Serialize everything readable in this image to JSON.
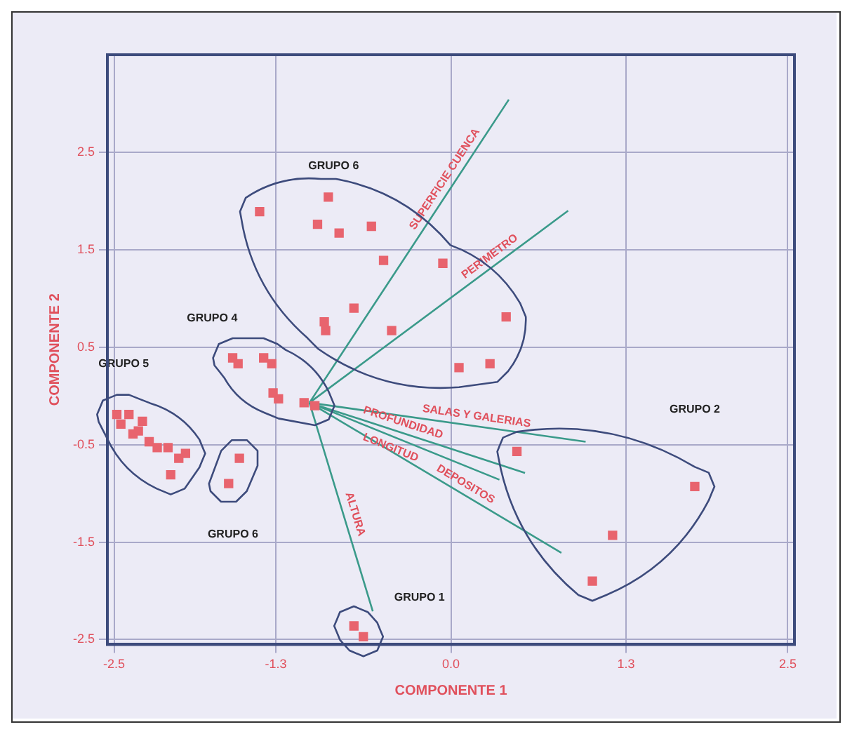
{
  "chart_data": {
    "type": "scatter",
    "xlabel": "COMPONENTE 1",
    "ylabel": "COMPONENTE 2",
    "xlim": [
      -2.55,
      2.55
    ],
    "ylim": [
      -2.55,
      3.5
    ],
    "xticks": [
      -2.5,
      -1.3,
      {
        "value": 0,
        "label": "0.0"
      },
      1.3,
      2.5
    ],
    "yticks": [
      -2.5,
      -1.5,
      -0.5,
      0.5,
      1.5,
      2.5
    ],
    "grid": true,
    "marker": "square",
    "legend": false,
    "annotations": [
      "GRUPO 6",
      "GRUPO 4",
      "GRUPO 5",
      "GRUPO 6",
      "GRUPO 1",
      "GRUPO 2",
      "SUPERFICIE CUENCA",
      "PERIMETRO",
      "SALAS Y GALERIAS",
      "PROFUNDIDAD",
      "LONGITUD",
      "DEPOSITOS",
      "ALTURA"
    ],
    "series": [
      {
        "type": "scatter",
        "color": "#e8646e",
        "x": [
          -1.42,
          -0.99,
          -0.91,
          -0.83,
          -0.59,
          -0.5,
          -0.72,
          -0.94,
          -0.93,
          -0.44,
          -0.06,
          0.41,
          0.29,
          0.06
        ],
        "values": [
          1.89,
          1.76,
          2.04,
          1.67,
          1.74,
          1.39,
          0.9,
          0.76,
          0.67,
          0.67,
          1.36,
          0.81,
          0.33,
          0.29
        ]
      },
      {
        "type": "scatter",
        "color": "#e8646e",
        "x": [
          -1.62,
          -1.58,
          -1.39,
          -1.33,
          -1.32,
          -1.28,
          -1.09,
          -1.01
        ],
        "values": [
          0.39,
          0.33,
          0.39,
          0.33,
          0.03,
          -0.03,
          -0.07,
          -0.1
        ]
      },
      {
        "type": "scatter",
        "color": "#e8646e",
        "x": [
          -2.48,
          -2.45,
          -2.39,
          -2.36,
          -2.32,
          -2.29,
          -2.24,
          -2.18,
          -2.1,
          -2.02,
          -1.97,
          -2.08
        ],
        "values": [
          -0.19,
          -0.29,
          -0.19,
          -0.39,
          -0.36,
          -0.26,
          -0.47,
          -0.53,
          -0.53,
          -0.64,
          -0.59,
          -0.81
        ]
      },
      {
        "type": "scatter",
        "color": "#e8646e",
        "x": [
          -1.57,
          -1.65
        ],
        "values": [
          -0.64,
          -0.9
        ]
      },
      {
        "type": "scatter",
        "color": "#e8646e",
        "x": [
          -0.72,
          -0.65
        ],
        "values": [
          -2.36,
          -2.47
        ]
      },
      {
        "type": "scatter",
        "color": "#e8646e",
        "x": [
          0.49,
          1.81,
          1.2,
          1.05
        ],
        "values": [
          -0.57,
          -0.93,
          -1.43,
          -1.9
        ]
      },
      {
        "type": "line",
        "marker": "none",
        "color": "#3a9a8a",
        "x": [
          -1.05,
          0.43
        ],
        "values": [
          -0.07,
          3.04
        ]
      },
      {
        "type": "line",
        "marker": "none",
        "color": "#3a9a8a",
        "x": [
          -1.05,
          0.87
        ],
        "values": [
          -0.07,
          1.9
        ]
      },
      {
        "type": "line",
        "marker": "none",
        "color": "#3a9a8a",
        "x": [
          -1.05,
          1.0
        ],
        "values": [
          -0.07,
          -0.47
        ]
      },
      {
        "type": "line",
        "marker": "none",
        "color": "#3a9a8a",
        "x": [
          -1.05,
          0.55
        ],
        "values": [
          -0.07,
          -0.79
        ]
      },
      {
        "type": "line",
        "marker": "none",
        "color": "#3a9a8a",
        "x": [
          -1.05,
          0.36
        ],
        "values": [
          -0.07,
          -0.86
        ]
      },
      {
        "type": "line",
        "marker": "none",
        "color": "#3a9a8a",
        "x": [
          -1.05,
          0.82
        ],
        "values": [
          -0.07,
          -1.61
        ]
      },
      {
        "type": "line",
        "marker": "none",
        "color": "#3a9a8a",
        "x": [
          -1.05,
          -0.58
        ],
        "values": [
          -0.07,
          -2.21
        ]
      }
    ]
  }
}
